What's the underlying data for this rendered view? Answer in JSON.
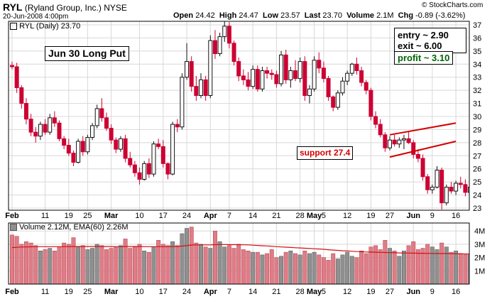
{
  "header": {
    "symbol": "RYL",
    "company": "(Ryland Group, Inc.)",
    "exchange": "NYSE",
    "datetime": "20-Jun-2008 4:00pm",
    "stats": [
      {
        "label": "Open",
        "value": "24.42"
      },
      {
        "label": "High",
        "value": "24.47"
      },
      {
        "label": "Low",
        "value": "23.57"
      },
      {
        "label": "Last",
        "value": "23.70"
      },
      {
        "label": "Volume",
        "value": "2.1M"
      },
      {
        "label": "Chg",
        "value": "-0.89 (-3.62%)"
      }
    ],
    "brand": "© StockCharts.com"
  },
  "price_legend": "RYL (Daily) 23.70",
  "annotations": {
    "title": "Jun 30 Long Put",
    "entry": "entry ~ 2.90",
    "exit": "exit ~ 6.00",
    "profit": "profit ~ 3.10",
    "support": "support 27.4"
  },
  "volume_legend": "Volume 2.12M, EMA(60) 2.26M",
  "colors": {
    "up": "#111111",
    "down": "#cc0033",
    "vol_up": "#909090",
    "vol_down": "#e07c86",
    "ema": "#d01010",
    "support": "#d40000",
    "profit": "#006400",
    "grid": "#d8d8d8"
  },
  "chart_data": {
    "type": "candlestick",
    "price_axis": {
      "min": 23,
      "max": 37,
      "ticks": [
        23,
        24,
        25,
        26,
        27,
        28,
        29,
        30,
        31,
        32,
        33,
        34,
        35,
        36,
        37
      ]
    },
    "volume_axis": {
      "min": 0,
      "max": 4.6,
      "ticks": [
        {
          "v": 1,
          "label": "1M"
        },
        {
          "v": 2,
          "label": "2M"
        },
        {
          "v": 3,
          "label": "3M"
        },
        {
          "v": 4,
          "label": "4M"
        }
      ]
    },
    "x_labels": [
      {
        "i": 0,
        "label": "Feb",
        "bold": true
      },
      {
        "i": 7,
        "label": "11",
        "bold": false
      },
      {
        "i": 12,
        "label": "19",
        "bold": false
      },
      {
        "i": 16,
        "label": "25",
        "bold": false
      },
      {
        "i": 21,
        "label": "Mar",
        "bold": true
      },
      {
        "i": 27,
        "label": "10",
        "bold": false
      },
      {
        "i": 32,
        "label": "17",
        "bold": false
      },
      {
        "i": 37,
        "label": "24",
        "bold": false
      },
      {
        "i": 42,
        "label": "Apr",
        "bold": true
      },
      {
        "i": 46,
        "label": "7",
        "bold": false
      },
      {
        "i": 51,
        "label": "14",
        "bold": false
      },
      {
        "i": 56,
        "label": "21",
        "bold": false
      },
      {
        "i": 61,
        "label": "28",
        "bold": false
      },
      {
        "i": 64,
        "label": "May",
        "bold": true
      },
      {
        "i": 66,
        "label": "5",
        "bold": false
      },
      {
        "i": 71,
        "label": "12",
        "bold": false
      },
      {
        "i": 76,
        "label": "19",
        "bold": false
      },
      {
        "i": 80,
        "label": "27",
        "bold": false
      },
      {
        "i": 85,
        "label": "Jun",
        "bold": true
      },
      {
        "i": 89,
        "label": "9",
        "bold": false
      },
      {
        "i": 94,
        "label": "16",
        "bold": false
      }
    ],
    "candles": [
      [
        33.9,
        34.2,
        33.6,
        33.8
      ],
      [
        33.8,
        34.1,
        31.8,
        32.2
      ],
      [
        32.2,
        32.4,
        30.6,
        31.0
      ],
      [
        31.0,
        31.4,
        29.4,
        29.8
      ],
      [
        29.8,
        30.2,
        28.5,
        28.8
      ],
      [
        28.8,
        29.2,
        28.0,
        28.5
      ],
      [
        28.5,
        29.6,
        28.2,
        29.4
      ],
      [
        29.4,
        29.8,
        28.6,
        28.8
      ],
      [
        28.8,
        30.2,
        28.6,
        29.9
      ],
      [
        29.9,
        30.4,
        29.2,
        29.5
      ],
      [
        29.5,
        29.7,
        28.1,
        28.3
      ],
      [
        28.3,
        28.5,
        27.5,
        27.8
      ],
      [
        27.8,
        28.3,
        27.0,
        27.2
      ],
      [
        27.2,
        27.4,
        26.2,
        26.5
      ],
      [
        26.5,
        28.3,
        26.4,
        28.1
      ],
      [
        28.1,
        28.5,
        27.0,
        27.3
      ],
      [
        27.3,
        28.6,
        27.1,
        28.4
      ],
      [
        28.4,
        29.5,
        28.2,
        29.3
      ],
      [
        29.3,
        30.9,
        29.1,
        30.6
      ],
      [
        30.6,
        31.4,
        29.6,
        29.9
      ],
      [
        29.9,
        30.3,
        28.9,
        29.1
      ],
      [
        29.1,
        29.4,
        27.9,
        28.2
      ],
      [
        28.2,
        28.4,
        27.2,
        27.5
      ],
      [
        27.5,
        28.5,
        27.3,
        28.3
      ],
      [
        28.3,
        28.6,
        26.5,
        26.8
      ],
      [
        26.8,
        27.3,
        26.1,
        26.3
      ],
      [
        26.3,
        26.6,
        25.4,
        25.7
      ],
      [
        25.7,
        26.1,
        24.8,
        25.2
      ],
      [
        25.2,
        26.6,
        25.1,
        26.4
      ],
      [
        26.4,
        26.8,
        25.3,
        25.6
      ],
      [
        25.6,
        28.1,
        25.4,
        27.9
      ],
      [
        27.9,
        28.3,
        27.5,
        27.7
      ],
      [
        27.7,
        28.2,
        26.1,
        26.4
      ],
      [
        26.4,
        26.5,
        25.2,
        25.6
      ],
      [
        25.6,
        29.6,
        25.5,
        29.4
      ],
      [
        29.4,
        29.8,
        28.8,
        29.2
      ],
      [
        29.2,
        33.3,
        29.0,
        33.0
      ],
      [
        33.0,
        35.6,
        32.8,
        34.2
      ],
      [
        34.2,
        34.6,
        31.9,
        32.3
      ],
      [
        32.3,
        33.1,
        31.2,
        31.6
      ],
      [
        31.6,
        33.3,
        31.4,
        32.8
      ],
      [
        32.8,
        33.1,
        31.2,
        31.6
      ],
      [
        31.6,
        36.2,
        31.4,
        35.8
      ],
      [
        35.8,
        36.6,
        34.4,
        34.8
      ],
      [
        34.8,
        36.4,
        34.6,
        36.1
      ],
      [
        36.1,
        37.8,
        35.7,
        36.9
      ],
      [
        36.9,
        37.2,
        35.2,
        35.6
      ],
      [
        35.6,
        35.8,
        33.9,
        34.2
      ],
      [
        34.2,
        34.5,
        32.7,
        33.1
      ],
      [
        33.1,
        33.6,
        32.4,
        32.8
      ],
      [
        32.8,
        33.4,
        32.0,
        32.3
      ],
      [
        32.3,
        33.9,
        32.1,
        33.6
      ],
      [
        33.6,
        33.9,
        31.9,
        32.1
      ],
      [
        32.1,
        33.8,
        31.9,
        33.5
      ],
      [
        33.5,
        33.8,
        32.9,
        33.3
      ],
      [
        33.3,
        33.6,
        32.8,
        33.2
      ],
      [
        33.2,
        33.5,
        32.2,
        32.5
      ],
      [
        32.5,
        35.0,
        32.3,
        34.7
      ],
      [
        34.7,
        35.1,
        32.5,
        32.8
      ],
      [
        32.8,
        33.8,
        32.2,
        33.5
      ],
      [
        33.5,
        34.3,
        32.7,
        32.9
      ],
      [
        32.9,
        34.5,
        32.6,
        34.2
      ],
      [
        34.2,
        34.6,
        31.2,
        31.6
      ],
      [
        31.6,
        32.4,
        31.0,
        32.1
      ],
      [
        32.1,
        34.6,
        31.9,
        34.3
      ],
      [
        34.3,
        34.9,
        33.3,
        33.7
      ],
      [
        33.7,
        34.2,
        32.6,
        32.9
      ],
      [
        32.9,
        33.1,
        31.2,
        31.5
      ],
      [
        31.5,
        31.6,
        30.4,
        30.7
      ],
      [
        30.7,
        32.0,
        30.5,
        31.8
      ],
      [
        31.8,
        33.0,
        31.6,
        32.7
      ],
      [
        32.7,
        33.5,
        32.4,
        33.3
      ],
      [
        33.3,
        34.1,
        33.1,
        34.0
      ],
      [
        34.0,
        34.5,
        33.2,
        33.5
      ],
      [
        33.5,
        33.8,
        32.3,
        32.6
      ],
      [
        32.6,
        32.8,
        31.7,
        32.0
      ],
      [
        32.0,
        32.2,
        29.7,
        30.0
      ],
      [
        30.0,
        30.4,
        29.1,
        29.4
      ],
      [
        29.4,
        29.8,
        28.4,
        28.6
      ],
      [
        28.6,
        28.8,
        27.3,
        27.6
      ],
      [
        27.6,
        28.5,
        27.4,
        28.2
      ],
      [
        28.2,
        28.6,
        27.7,
        27.9
      ],
      [
        27.9,
        28.4,
        27.6,
        28.2
      ],
      [
        28.2,
        28.6,
        27.5,
        28.3
      ],
      [
        28.3,
        28.9,
        27.9,
        28.0
      ],
      [
        28.0,
        28.2,
        26.8,
        27.1
      ],
      [
        27.1,
        27.5,
        26.5,
        26.8
      ],
      [
        26.8,
        27.1,
        25.1,
        25.4
      ],
      [
        25.4,
        25.6,
        24.1,
        24.4
      ],
      [
        24.4,
        24.8,
        24.1,
        24.6
      ],
      [
        24.6,
        26.2,
        24.5,
        25.9
      ],
      [
        25.9,
        26.1,
        22.9,
        23.4
      ],
      [
        23.4,
        24.8,
        23.2,
        24.6
      ],
      [
        24.6,
        25.0,
        24.1,
        24.3
      ],
      [
        24.3,
        25.1,
        24.0,
        24.9
      ],
      [
        24.9,
        25.4,
        24.5,
        24.8
      ],
      [
        24.8,
        25.2,
        23.9,
        24.2
      ],
      [
        24.2,
        24.7,
        23.6,
        24.6
      ],
      [
        24.6,
        25.0,
        23.8,
        24.4
      ],
      [
        24.4,
        24.5,
        23.6,
        23.7
      ]
    ],
    "volume_m": [
      3.7,
      3.6,
      3.0,
      3.2,
      3.1,
      2.9,
      2.5,
      2.6,
      2.7,
      2.5,
      2.8,
      3.1,
      3.0,
      3.5,
      2.8,
      2.9,
      2.6,
      2.7,
      3.0,
      2.9,
      2.6,
      2.7,
      2.8,
      2.9,
      3.4,
      2.7,
      2.8,
      3.0,
      2.5,
      2.4,
      2.8,
      3.3,
      3.0,
      2.9,
      3.2,
      2.9,
      3.8,
      4.2,
      4.3,
      3.1,
      3.0,
      2.8,
      2.7,
      4.0,
      3.2,
      2.8,
      2.9,
      2.7,
      3.0,
      2.6,
      2.5,
      2.4,
      2.4,
      2.2,
      2.3,
      2.6,
      2.0,
      2.1,
      2.4,
      2.5,
      2.3,
      2.2,
      2.5,
      2.3,
      2.4,
      2.2,
      2.0,
      1.8,
      2.3,
      1.9,
      2.2,
      2.4,
      2.1,
      2.0,
      2.5,
      2.3,
      2.8,
      2.9,
      2.6,
      3.3,
      2.7,
      2.5,
      2.1,
      2.5,
      2.9,
      3.2,
      2.6,
      2.7,
      3.0,
      2.8,
      2.6,
      3.1,
      2.8,
      2.4,
      2.5,
      2.3,
      2.2,
      2.2,
      2.1
    ],
    "ema60": [
      2.75,
      2.77,
      2.79,
      2.8,
      2.81,
      2.82,
      2.82,
      2.82,
      2.82,
      2.82,
      2.82,
      2.82,
      2.82,
      2.83,
      2.83,
      2.83,
      2.83,
      2.83,
      2.83,
      2.83,
      2.83,
      2.83,
      2.82,
      2.82,
      2.83,
      2.83,
      2.83,
      2.83,
      2.82,
      2.82,
      2.82,
      2.82,
      2.82,
      2.82,
      2.83,
      2.83,
      2.86,
      2.9,
      2.94,
      2.95,
      2.95,
      2.95,
      2.95,
      2.97,
      2.98,
      2.98,
      2.97,
      2.97,
      2.97,
      2.96,
      2.95,
      2.93,
      2.91,
      2.89,
      2.87,
      2.85,
      2.82,
      2.8,
      2.78,
      2.76,
      2.74,
      2.72,
      2.7,
      2.68,
      2.66,
      2.64,
      2.62,
      2.59,
      2.56,
      2.54,
      2.51,
      2.49,
      2.47,
      2.45,
      2.44,
      2.42,
      2.41,
      2.4,
      2.39,
      2.38,
      2.37,
      2.36,
      2.35,
      2.34,
      2.34,
      2.33,
      2.32,
      2.32,
      2.31,
      2.31,
      2.3,
      2.3,
      2.3,
      2.29,
      2.28,
      2.28,
      2.27,
      2.27,
      2.26
    ],
    "support_channel": {
      "upper": [
        [
          80,
          28.6
        ],
        [
          94,
          29.5
        ]
      ],
      "lower": [
        [
          80,
          26.9
        ],
        [
          94,
          28.1
        ]
      ]
    }
  }
}
